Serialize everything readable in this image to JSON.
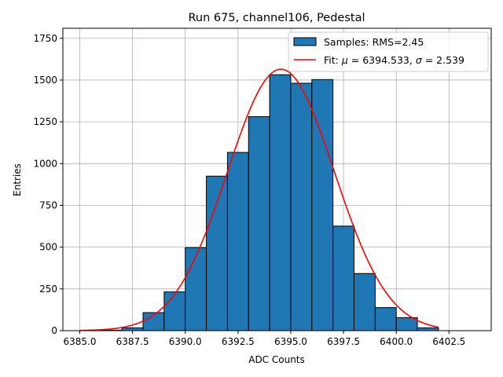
{
  "chart_data": {
    "type": "bar",
    "title": "Run 675, channel106, Pedestal",
    "xlabel": "ADC Counts",
    "ylabel": "Entries",
    "xlim": [
      6384.2,
      6404.5
    ],
    "ylim": [
      0,
      1810
    ],
    "grid": true,
    "legend_position": "top-right",
    "x_ticks": [
      6385.0,
      6387.5,
      6390.0,
      6392.5,
      6395.0,
      6397.5,
      6400.0,
      6402.5
    ],
    "x_tick_labels": [
      "6385.0",
      "6387.5",
      "6390.0",
      "6392.5",
      "6395.0",
      "6397.5",
      "6400.0",
      "6402.5"
    ],
    "y_ticks": [
      0,
      250,
      500,
      750,
      1000,
      1250,
      1500,
      1750
    ],
    "y_tick_labels": [
      "0",
      "250",
      "500",
      "750",
      "1000",
      "1250",
      "1500",
      "1750"
    ],
    "histogram": {
      "name": "Samples: RMS=2.45",
      "color": "#1f77b4",
      "edge_color": "#000000",
      "bins": [
        {
          "x0": 6385,
          "x1": 6386,
          "count": 0
        },
        {
          "x0": 6386,
          "x1": 6387,
          "count": 3
        },
        {
          "x0": 6387,
          "x1": 6388,
          "count": 17
        },
        {
          "x0": 6388,
          "x1": 6389,
          "count": 108
        },
        {
          "x0": 6389,
          "x1": 6390,
          "count": 232
        },
        {
          "x0": 6390,
          "x1": 6391,
          "count": 497
        },
        {
          "x0": 6391,
          "x1": 6392,
          "count": 925
        },
        {
          "x0": 6392,
          "x1": 6393,
          "count": 1067
        },
        {
          "x0": 6393,
          "x1": 6394,
          "count": 1281
        },
        {
          "x0": 6394,
          "x1": 6395,
          "count": 1532
        },
        {
          "x0": 6395,
          "x1": 6396,
          "count": 1481
        },
        {
          "x0": 6396,
          "x1": 6397,
          "count": 1503
        },
        {
          "x0": 6397,
          "x1": 6398,
          "count": 626
        },
        {
          "x0": 6398,
          "x1": 6399,
          "count": 342
        },
        {
          "x0": 6399,
          "x1": 6400,
          "count": 138
        },
        {
          "x0": 6400,
          "x1": 6401,
          "count": 78
        },
        {
          "x0": 6401,
          "x1": 6402,
          "count": 17
        }
      ]
    },
    "fit": {
      "name": "Fit: μ = 6394.533, σ = 2.539",
      "label_prefix": "Fit: ",
      "label_mu": "μ",
      "label_mid": " = 6394.533, ",
      "label_sigma": "σ",
      "label_suffix": " = 2.539",
      "color": "#ff0000",
      "type": "gaussian",
      "mu": 6394.533,
      "sigma": 2.539,
      "amplitude": 1565,
      "x_range": [
        6385,
        6402
      ]
    }
  }
}
